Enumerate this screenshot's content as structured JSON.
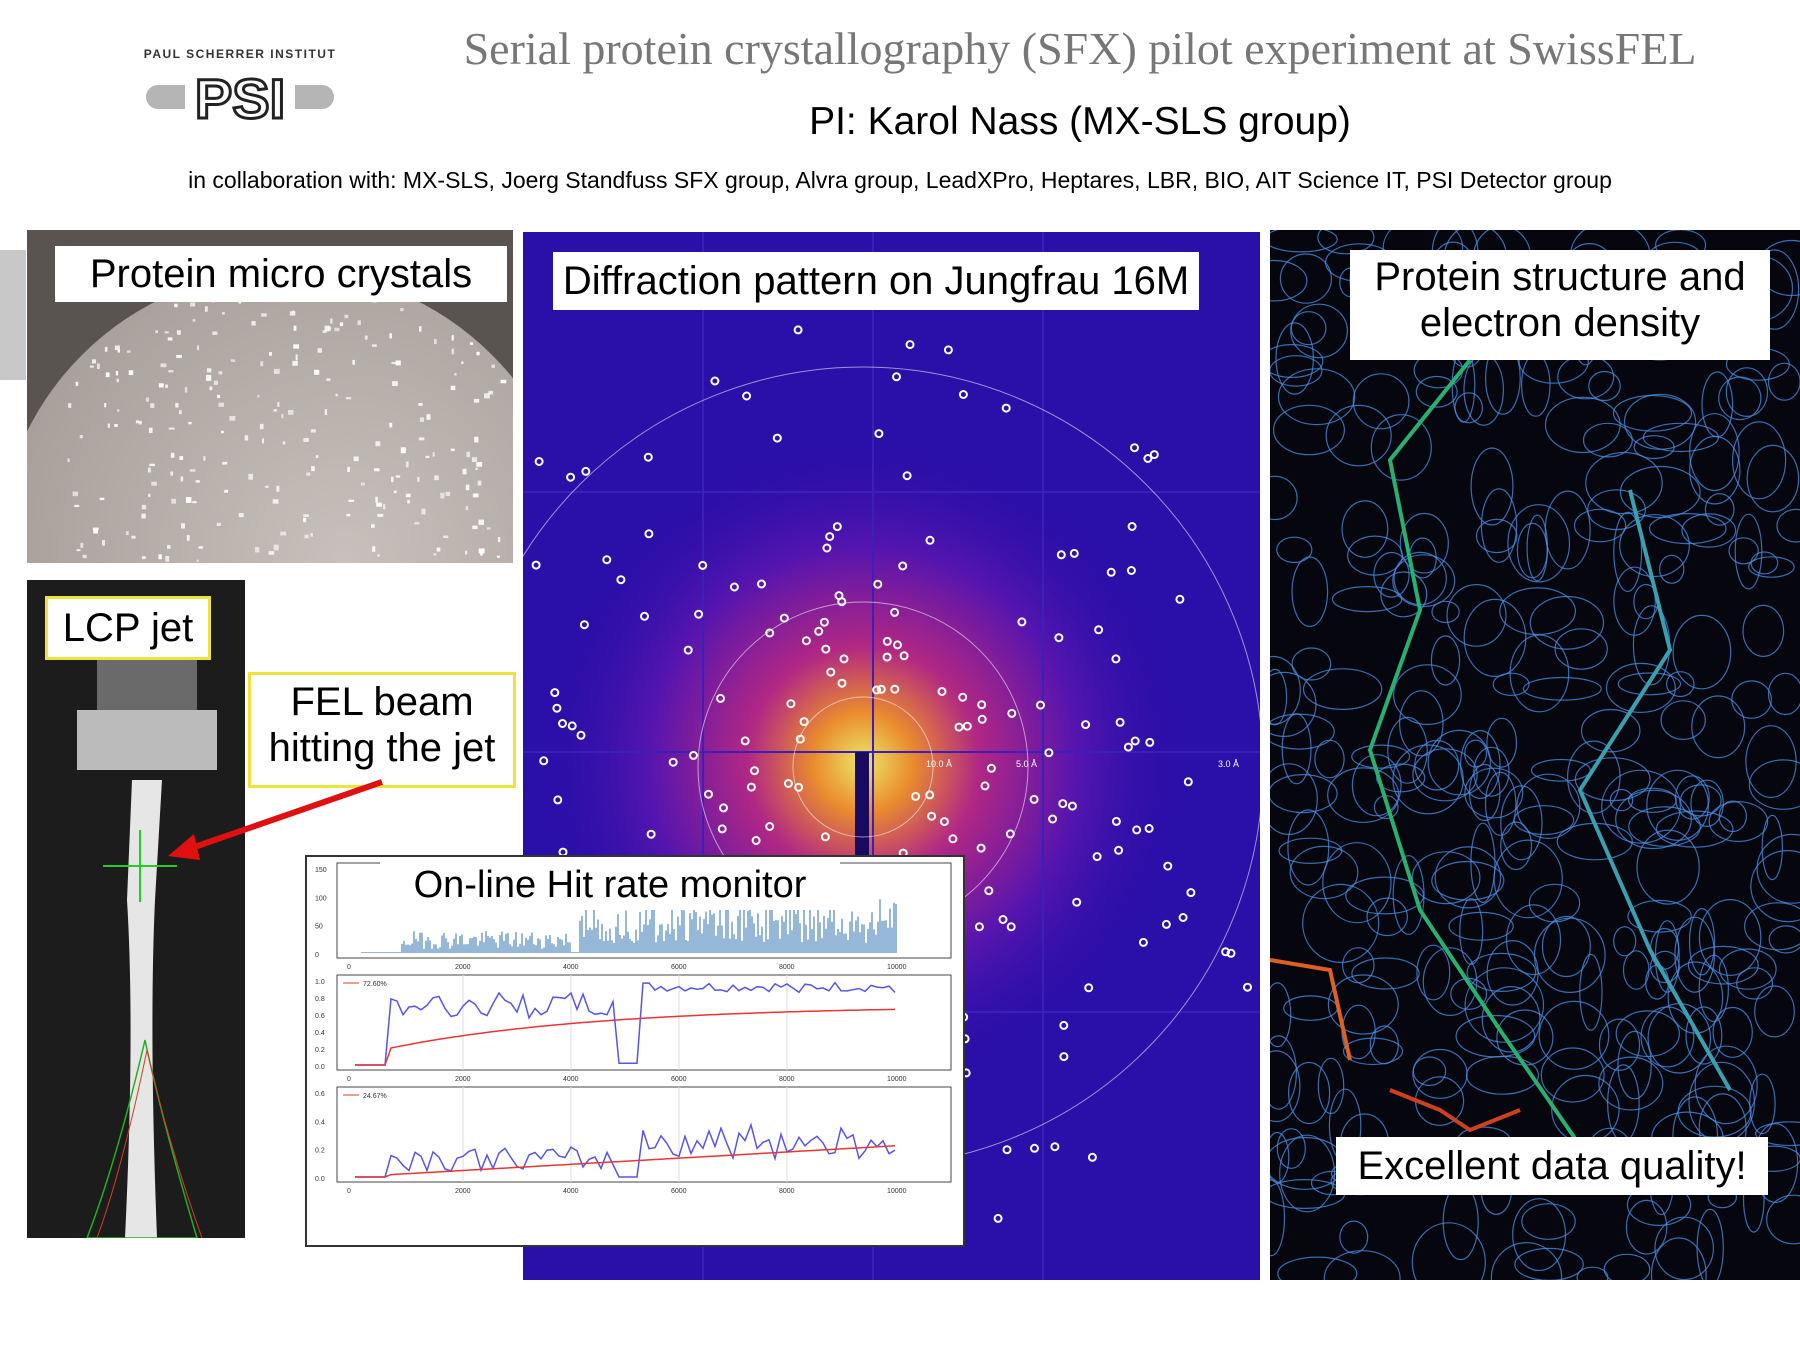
{
  "header": {
    "institute_small": "PAUL SCHERRER INSTITUT",
    "logo_letters": "PSI",
    "title": "Serial protein crystallography (SFX) pilot experiment at SwissFEL",
    "pi_line": "PI: Karol Nass  (MX-SLS group)",
    "collaboration": "in collaboration with: MX-SLS, Joerg Standfuss SFX group, Alvra group, LeadXPro, Heptares, LBR, BIO, AIT Science IT, PSI Detector group"
  },
  "panels": {
    "crystals": {
      "label": "Protein micro crystals"
    },
    "lcp": {
      "label": "LCP jet",
      "beam_label_line1": "FEL beam",
      "beam_label_line2": "hitting the jet"
    },
    "diffraction": {
      "label": "Diffraction pattern on Jungfrau 16M",
      "ring_labels": [
        "10.0 Å",
        "5.0 Å",
        "3.0 Å"
      ]
    },
    "structure": {
      "label_line1": "Protein structure and",
      "label_line2": "electron density",
      "bottom_label": "Excellent data quality!"
    },
    "monitor": {
      "label": "On-line Hit rate monitor",
      "plot1": {
        "yticks": [
          "150",
          "100",
          "50",
          "0"
        ],
        "xticks": [
          "0",
          "2000",
          "4000",
          "6000",
          "8000",
          "10000"
        ]
      },
      "plot2": {
        "yticks": [
          "1.0",
          "0.8",
          "0.6",
          "0.4",
          "0.2",
          "0.0"
        ],
        "xticks": [
          "0",
          "2000",
          "4000",
          "6000",
          "8000",
          "10000"
        ],
        "legend": "72.60%"
      },
      "plot3": {
        "yticks": [
          "0.6",
          "0.4",
          "0.2",
          "0.0"
        ],
        "xticks": [
          "0",
          "2000",
          "4000",
          "6000",
          "8000",
          "10000"
        ],
        "legend": "24.67%"
      }
    }
  },
  "colors": {
    "title_gray": "#777777",
    "label_border_yellow": "#f0e23a",
    "arrow_red": "#e01010",
    "diffraction_bg": "#2a0fa8",
    "monitor_blue": "#2b6fb0",
    "monitor_line": "#5555ee",
    "monitor_red": "#ee3333"
  }
}
